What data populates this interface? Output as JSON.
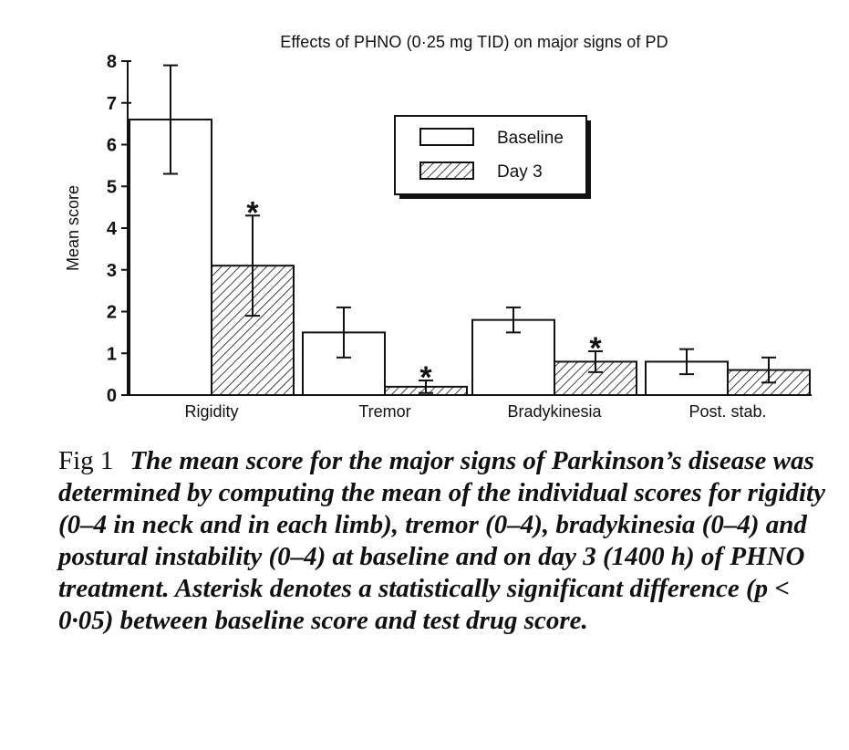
{
  "chart_data": {
    "type": "bar",
    "title": "Effects of PHNO (0·25 mg TID) on major signs of PD",
    "ylabel": "Mean score",
    "xlabel": "",
    "ylim": [
      0,
      8
    ],
    "yticks": [
      "0",
      "1",
      "2",
      "3",
      "4",
      "5",
      "6",
      "7",
      "8"
    ],
    "categories": [
      "Rigidity",
      "Tremor",
      "Bradykinesia",
      "Post. stab."
    ],
    "series": [
      {
        "name": "Baseline",
        "values": [
          6.6,
          1.5,
          1.8,
          0.8
        ],
        "error": [
          1.3,
          0.6,
          0.3,
          0.3
        ],
        "significant": [
          false,
          false,
          false,
          false
        ],
        "fill": "white"
      },
      {
        "name": "Day 3",
        "values": [
          3.1,
          0.2,
          0.8,
          0.6
        ],
        "error": [
          1.2,
          0.15,
          0.25,
          0.3
        ],
        "significant": [
          true,
          true,
          true,
          false
        ],
        "fill": "hatched"
      }
    ],
    "significance_marker": "*",
    "legend_position": "top-right",
    "grid": false
  },
  "caption": {
    "label": "Fig 1",
    "text": "The mean score for the major signs of Parkinson’s disease was determined by computing the mean of the individual scores for rigidity (0–4 in neck and in each limb), tremor (0–4), bradykinesia (0–4) and postural instability (0–4) at baseline and on day 3 (1400 h) of PHNO treatment. Asterisk denotes a statistically significant difference (p < 0·05) between baseline score and test drug score."
  },
  "colors": {
    "ink": "#111111",
    "paper": "#ffffff"
  }
}
